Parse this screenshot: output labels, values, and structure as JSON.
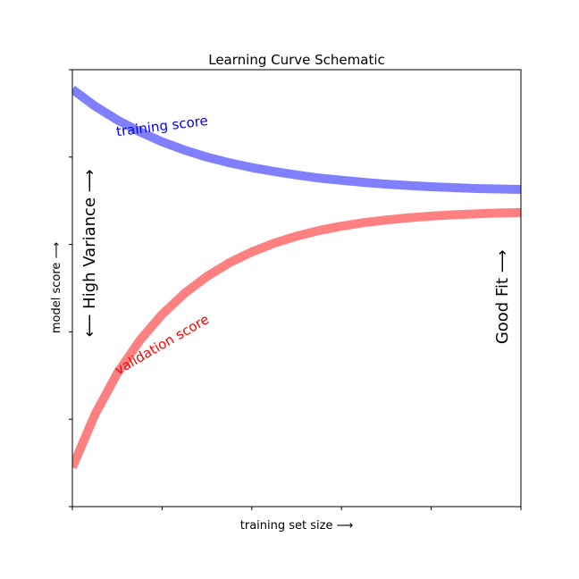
{
  "chart_data": {
    "type": "line",
    "title": "Learning Curve Schematic",
    "xlabel": "training set size ⟶",
    "ylabel": "model score ⟶",
    "xlim": [
      1,
      6
    ],
    "ylim": [
      0,
      1
    ],
    "grid": false,
    "legend": "none",
    "series": [
      {
        "name": "training score",
        "color": "#8080ff",
        "x": [
          1.0,
          1.25,
          1.5,
          1.75,
          2.0,
          2.25,
          2.5,
          2.75,
          3.0,
          3.25,
          3.5,
          3.75,
          4.0,
          4.25,
          4.5,
          4.75,
          5.0,
          5.25,
          5.5,
          5.75,
          6.0
        ],
        "y": [
          0.955,
          0.917,
          0.885,
          0.858,
          0.835,
          0.816,
          0.8,
          0.787,
          0.776,
          0.767,
          0.759,
          0.752,
          0.747,
          0.742,
          0.738,
          0.735,
          0.732,
          0.73,
          0.728,
          0.727,
          0.726
        ]
      },
      {
        "name": "validation score",
        "color": "#ff8080",
        "x": [
          1.0,
          1.25,
          1.5,
          1.75,
          2.0,
          2.25,
          2.5,
          2.75,
          3.0,
          3.25,
          3.5,
          3.75,
          4.0,
          4.25,
          4.5,
          4.75,
          5.0,
          5.25,
          5.5,
          5.75,
          6.0
        ],
        "y": [
          0.09,
          0.21,
          0.305,
          0.38,
          0.44,
          0.488,
          0.527,
          0.558,
          0.583,
          0.603,
          0.619,
          0.632,
          0.642,
          0.65,
          0.656,
          0.661,
          0.665,
          0.668,
          0.67,
          0.672,
          0.673
        ]
      }
    ],
    "annotations": [
      {
        "id": "training-score-label",
        "text": "training score",
        "color": "#0000ff",
        "x": 2.0,
        "y": 0.87,
        "rotation": -7,
        "size": 15
      },
      {
        "id": "validation-score-label",
        "text": "validation score",
        "color": "#ff0000",
        "x": 2.0,
        "y": 0.37,
        "rotation": -30,
        "size": 15
      },
      {
        "id": "high-variance-label",
        "text": "⟵  High Variance  ⟶",
        "color": "#000000",
        "x": 1.2,
        "y": 0.58,
        "rotation": -90,
        "size": 18
      },
      {
        "id": "good-fit-label",
        "text": "Good Fit  ⟶",
        "color": "#000000",
        "x": 5.8,
        "y": 0.48,
        "rotation": -90,
        "size": 18
      }
    ]
  }
}
